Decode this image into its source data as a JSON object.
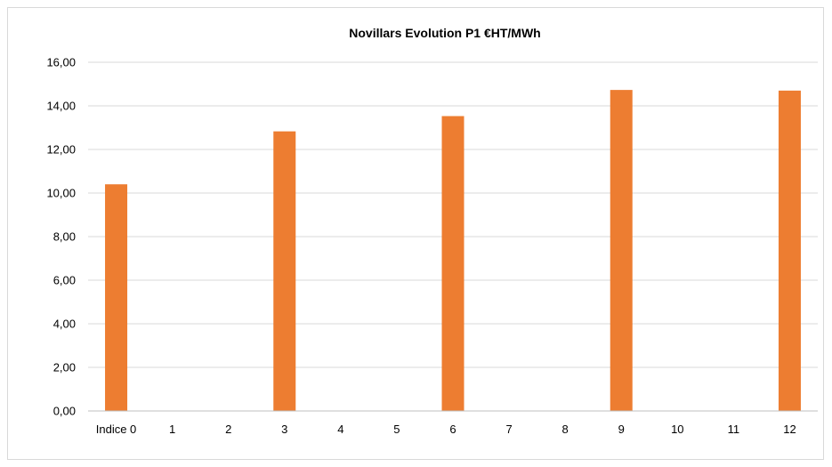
{
  "chart_data": {
    "type": "bar",
    "title": "Novillars Evolution P1 €HT/MWh",
    "xlabel": "",
    "ylabel": "",
    "categories": [
      "Indice 0",
      "1",
      "2",
      "3",
      "4",
      "5",
      "6",
      "7",
      "8",
      "9",
      "10",
      "11",
      "12"
    ],
    "values": [
      10.4,
      0,
      0,
      12.83,
      0,
      0,
      13.53,
      0,
      0,
      14.73,
      0,
      0,
      14.7
    ],
    "ylim": [
      0,
      16
    ],
    "yticks": [
      0,
      2,
      4,
      6,
      8,
      10,
      12,
      14,
      16
    ],
    "ytick_labels": [
      "0,00",
      "2,00",
      "4,00",
      "6,00",
      "8,00",
      "10,00",
      "12,00",
      "14,00",
      "16,00"
    ],
    "grid": true,
    "legend": "none",
    "bar_color": "#ED7D31"
  }
}
